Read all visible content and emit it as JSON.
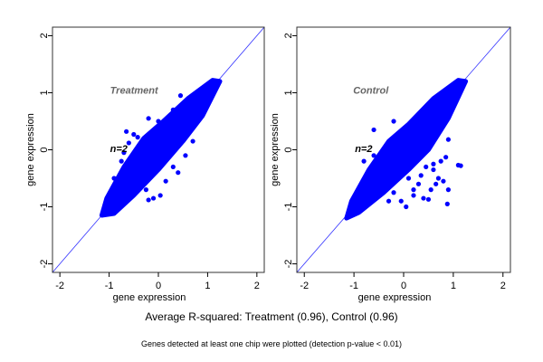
{
  "chart_data": [
    {
      "type": "scatter",
      "title": "Treatment",
      "annotation": "n=2",
      "xlabel": "gene expression",
      "ylabel": "gene expression",
      "xlim": [
        -2.15,
        2.15
      ],
      "ylim": [
        -2.15,
        2.15
      ],
      "xticks": [
        "-2",
        "-1",
        "0",
        "1",
        "2"
      ],
      "yticks": [
        "-2",
        "-1",
        "0",
        "1",
        "2"
      ],
      "grid": false,
      "reference_line": "y = x",
      "point_color": "#0000ff",
      "line_color": "#3333ff",
      "dense_region": [
        [
          -1.15,
          -1.15
        ],
        [
          -0.9,
          -1.12
        ],
        [
          -0.5,
          -0.8
        ],
        [
          0.0,
          -0.35
        ],
        [
          0.5,
          0.15
        ],
        [
          0.9,
          0.6
        ],
        [
          1.25,
          1.2
        ],
        [
          1.1,
          1.22
        ],
        [
          0.6,
          0.9
        ],
        [
          0.1,
          0.5
        ],
        [
          -0.3,
          0.2
        ],
        [
          -0.7,
          -0.3
        ],
        [
          -1.05,
          -0.85
        ]
      ],
      "points": [
        [
          -0.65,
          0.32
        ],
        [
          -0.5,
          0.27
        ],
        [
          -0.6,
          0.12
        ],
        [
          -0.42,
          0.22
        ],
        [
          -0.9,
          -0.5
        ],
        [
          -0.85,
          -0.55
        ],
        [
          -0.65,
          -0.35
        ],
        [
          -0.7,
          -0.05
        ],
        [
          -0.75,
          -0.2
        ],
        [
          -0.1,
          -0.85
        ],
        [
          0.04,
          -0.8
        ],
        [
          -0.2,
          -0.88
        ],
        [
          -0.25,
          -0.7
        ],
        [
          0.4,
          -0.4
        ],
        [
          0.3,
          -0.3
        ],
        [
          0.55,
          -0.1
        ],
        [
          0.7,
          0.15
        ],
        [
          0.62,
          0.4
        ],
        [
          0.45,
          0.95
        ],
        [
          0.3,
          0.7
        ],
        [
          -0.2,
          0.55
        ],
        [
          0.0,
          0.5
        ],
        [
          0.8,
          0.6
        ],
        [
          -0.5,
          -0.6
        ],
        [
          0.15,
          -0.55
        ],
        [
          1.2,
          1.2
        ],
        [
          -1.1,
          -1.12
        ]
      ]
    },
    {
      "type": "scatter",
      "title": "Control",
      "annotation": "n=2",
      "xlabel": "gene expression",
      "ylabel": "gene expression",
      "xlim": [
        -2.15,
        2.15
      ],
      "ylim": [
        -2.15,
        2.15
      ],
      "xticks": [
        "-2",
        "-1",
        "0",
        "1",
        "2"
      ],
      "yticks": [
        "-2",
        "-1",
        "0",
        "1",
        "2"
      ],
      "grid": false,
      "reference_line": "y = x",
      "point_color": "#0000ff",
      "line_color": "#3333ff",
      "dense_region": [
        [
          -1.15,
          -1.2
        ],
        [
          -0.9,
          -1.1
        ],
        [
          -0.4,
          -0.75
        ],
        [
          0.1,
          -0.35
        ],
        [
          0.5,
          0.0
        ],
        [
          0.9,
          0.55
        ],
        [
          1.25,
          1.2
        ],
        [
          1.1,
          1.22
        ],
        [
          0.6,
          0.9
        ],
        [
          0.1,
          0.45
        ],
        [
          -0.3,
          0.15
        ],
        [
          -0.7,
          -0.35
        ],
        [
          -1.05,
          -0.9
        ]
      ],
      "points": [
        [
          0.9,
          0.18
        ],
        [
          0.85,
          -0.13
        ],
        [
          1.1,
          -0.27
        ],
        [
          1.15,
          -0.28
        ],
        [
          0.88,
          -0.95
        ],
        [
          0.5,
          -0.87
        ],
        [
          0.05,
          -1.0
        ],
        [
          -0.3,
          -0.9
        ],
        [
          0.45,
          -0.3
        ],
        [
          0.6,
          -0.35
        ],
        [
          0.7,
          -0.5
        ],
        [
          0.8,
          -0.55
        ],
        [
          0.9,
          -0.7
        ],
        [
          0.2,
          -0.7
        ],
        [
          0.3,
          -0.6
        ],
        [
          0.1,
          -0.5
        ],
        [
          -0.2,
          -0.75
        ],
        [
          0.55,
          -0.7
        ],
        [
          0.75,
          -0.2
        ],
        [
          0.2,
          -0.8
        ],
        [
          -0.6,
          -0.1
        ],
        [
          -0.8,
          -0.2
        ],
        [
          -0.2,
          0.5
        ],
        [
          -0.6,
          0.35
        ],
        [
          -0.05,
          -0.9
        ],
        [
          0.35,
          -0.45
        ],
        [
          0.65,
          -0.6
        ],
        [
          0.4,
          -0.85
        ],
        [
          0.6,
          -0.25
        ]
      ]
    }
  ],
  "caption": "Average R-squared: Treatment (0.96), Control (0.96)",
  "subcaption": "Genes detected at least one chip were plotted (detection p-value < 0.01)"
}
